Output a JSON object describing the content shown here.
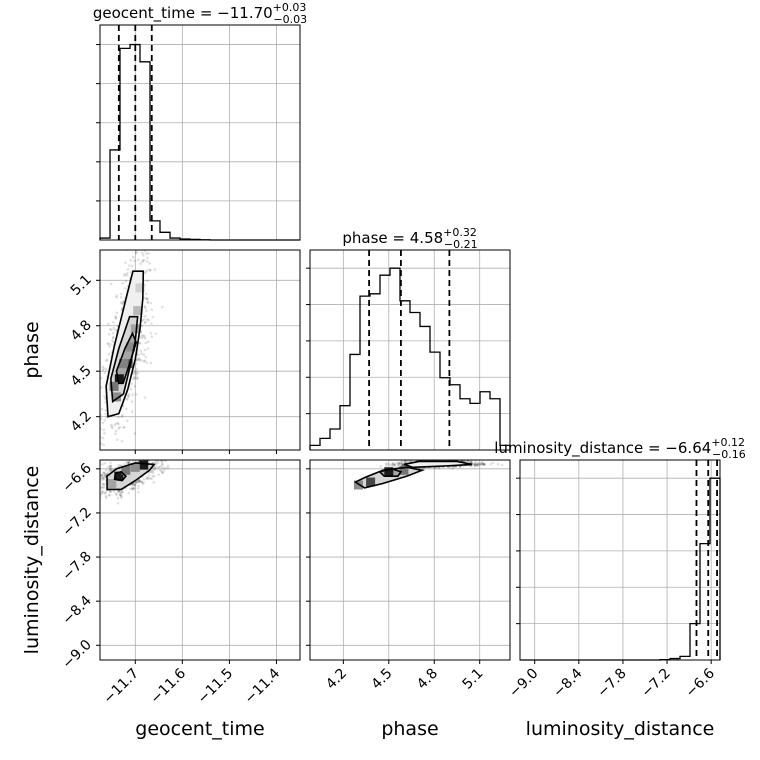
{
  "chart_data": {
    "type": "corner",
    "parameters": [
      {
        "name": "geocent_time",
        "label": "geocent_time",
        "median": "−11.70",
        "plus": "+0.03",
        "minus": "−0.03",
        "quantiles": [
          -11.735,
          -11.7,
          -11.665
        ],
        "range": [
          -11.775,
          -11.35
        ],
        "ticks": [
          -11.7,
          -11.6,
          -11.5,
          -11.4
        ],
        "tick_labels": [
          "−11.7",
          "−11.6",
          "−11.5",
          "−11.4"
        ],
        "hist_edges": [
          -11.775,
          -11.7537,
          -11.7325,
          -11.7112,
          -11.69,
          -11.6687,
          -11.6475,
          -11.6262,
          -11.605,
          -11.5837,
          -11.5625,
          -11.5412,
          -11.52,
          -11.4988,
          -11.4775,
          -11.4562,
          -11.435,
          -11.4138,
          -11.3925,
          -11.3712,
          -11.35
        ],
        "hist_counts": [
          0.01,
          0.47,
          1.0,
          1.02,
          0.93,
          0.1,
          0.04,
          0.01,
          0.005,
          0.003,
          0.001,
          0.0,
          0.0,
          0.0,
          0.0,
          0.0,
          0.0,
          0.0,
          0.0,
          0.0
        ]
      },
      {
        "name": "phase",
        "label": "phase",
        "median": "4.58",
        "plus": "+0.32",
        "minus": "−0.21",
        "quantiles": [
          4.37,
          4.58,
          4.9
        ],
        "range": [
          3.98,
          5.3
        ],
        "ticks": [
          4.2,
          4.5,
          4.8,
          5.1
        ],
        "tick_labels": [
          "4.2",
          "4.5",
          "4.8",
          "5.1"
        ],
        "hist_edges": [
          3.98,
          4.046,
          4.112,
          4.178,
          4.244,
          4.31,
          4.376,
          4.442,
          4.508,
          4.574,
          4.64,
          4.706,
          4.772,
          4.838,
          4.904,
          4.97,
          5.036,
          5.102,
          5.168,
          5.234,
          5.3
        ],
        "hist_counts": [
          0.02,
          0.05,
          0.09,
          0.19,
          0.41,
          0.66,
          0.67,
          0.75,
          0.78,
          0.64,
          0.59,
          0.53,
          0.42,
          0.31,
          0.28,
          0.22,
          0.2,
          0.25,
          0.22,
          0.02
        ]
      },
      {
        "name": "luminosity_distance",
        "label": "luminosity_distance",
        "median": "−6.64",
        "plus": "+0.12",
        "minus": "−0.16",
        "quantiles": [
          -6.8,
          -6.64,
          -6.52
        ],
        "range": [
          -9.2,
          -6.48
        ],
        "ticks": [
          -9.0,
          -8.4,
          -7.8,
          -7.2,
          -6.6
        ],
        "tick_labels": [
          "−9.0",
          "−8.4",
          "−7.8",
          "−7.2",
          "−6.6"
        ],
        "hist_edges": [
          -9.2,
          -9.064,
          -8.928,
          -8.792,
          -8.656,
          -8.52,
          -8.384,
          -8.248,
          -8.112,
          -7.976,
          -7.84,
          -7.704,
          -7.568,
          -7.432,
          -7.296,
          -7.16,
          -7.024,
          -6.888,
          -6.752,
          -6.616,
          -6.48
        ],
        "hist_counts": [
          0,
          0,
          0,
          0,
          0,
          0,
          0,
          0,
          0,
          0,
          0,
          0,
          0,
          0,
          0.001,
          0.004,
          0.01,
          0.1,
          0.32,
          0.5
        ]
      }
    ],
    "densities": [
      {
        "x": "geocent_time",
        "y": "phase",
        "peak": [
          -11.73,
          4.45
        ],
        "cells": [
          [
            -11.734,
            4.45,
            1.0
          ],
          [
            -11.715,
            4.55,
            0.7
          ],
          [
            -11.71,
            4.66,
            0.5
          ],
          [
            -11.74,
            4.33,
            0.5
          ],
          [
            -11.7,
            4.78,
            0.4
          ],
          [
            -11.725,
            4.55,
            0.55
          ],
          [
            -11.745,
            4.4,
            0.6
          ],
          [
            -11.695,
            4.9,
            0.3
          ],
          [
            -11.69,
            5.05,
            0.2
          ]
        ],
        "contours": [
          [
            [
              -11.735,
              4.42
            ],
            [
              -11.74,
              4.5
            ],
            [
              -11.722,
              4.65
            ],
            [
              -11.706,
              4.75
            ],
            [
              -11.698,
              4.69
            ],
            [
              -11.712,
              4.55
            ],
            [
              -11.726,
              4.42
            ]
          ],
          [
            [
              -11.748,
              4.3
            ],
            [
              -11.752,
              4.45
            ],
            [
              -11.735,
              4.65
            ],
            [
              -11.712,
              4.86
            ],
            [
              -11.695,
              4.86
            ],
            [
              -11.7,
              4.7
            ],
            [
              -11.712,
              4.52
            ],
            [
              -11.725,
              4.35
            ]
          ],
          [
            [
              -11.758,
              4.2
            ],
            [
              -11.762,
              4.4
            ],
            [
              -11.745,
              4.66
            ],
            [
              -11.718,
              5.0
            ],
            [
              -11.705,
              5.16
            ],
            [
              -11.683,
              5.16
            ],
            [
              -11.684,
              4.98
            ],
            [
              -11.69,
              4.78
            ],
            [
              -11.7,
              4.58
            ],
            [
              -11.716,
              4.38
            ],
            [
              -11.735,
              4.22
            ]
          ]
        ]
      },
      {
        "x": "geocent_time",
        "y": "luminosity_distance",
        "peak": [
          -11.68,
          -6.55
        ],
        "cells": [
          [
            -11.735,
            -6.7,
            1.0
          ],
          [
            -11.682,
            -6.55,
            1.0
          ],
          [
            -11.72,
            -6.62,
            0.6
          ],
          [
            -11.7,
            -6.58,
            0.5
          ],
          [
            -11.75,
            -6.8,
            0.4
          ]
        ],
        "contours": [
          [
            [
              -11.742,
              -6.66
            ],
            [
              -11.744,
              -6.74
            ],
            [
              -11.728,
              -6.76
            ],
            [
              -11.72,
              -6.7
            ],
            [
              -11.73,
              -6.64
            ]
          ],
          [
            [
              -11.76,
              -6.7
            ],
            [
              -11.76,
              -6.88
            ],
            [
              -11.73,
              -6.88
            ],
            [
              -11.7,
              -6.76
            ],
            [
              -11.67,
              -6.62
            ],
            [
              -11.66,
              -6.54
            ],
            [
              -11.7,
              -6.52
            ],
            [
              -11.74,
              -6.6
            ]
          ]
        ]
      },
      {
        "x": "phase",
        "y": "luminosity_distance",
        "peak": [
          4.5,
          -6.64
        ],
        "cells": [
          [
            4.5,
            -6.64,
            1.0
          ],
          [
            4.38,
            -6.78,
            0.8
          ],
          [
            4.6,
            -6.62,
            0.6
          ],
          [
            4.3,
            -6.82,
            0.5
          ]
        ],
        "contours": [
          [
            [
              4.44,
              -6.64
            ],
            [
              4.47,
              -6.7
            ],
            [
              4.56,
              -6.7
            ],
            [
              4.58,
              -6.64
            ],
            [
              4.52,
              -6.6
            ]
          ],
          [
            [
              4.28,
              -6.78
            ],
            [
              4.34,
              -6.86
            ],
            [
              4.46,
              -6.8
            ],
            [
              4.62,
              -6.7
            ],
            [
              4.72,
              -6.62
            ],
            [
              4.62,
              -6.58
            ],
            [
              4.46,
              -6.62
            ],
            [
              4.34,
              -6.72
            ]
          ],
          [
            [
              4.6,
              -6.54
            ],
            [
              4.66,
              -6.58
            ],
            [
              4.88,
              -6.56
            ],
            [
              5.05,
              -6.54
            ],
            [
              4.95,
              -6.5
            ],
            [
              4.7,
              -6.5
            ]
          ]
        ]
      }
    ]
  },
  "colors": {
    "line": "#000000",
    "grid": "#b0b0b0",
    "contour_fill_levels": [
      "#a6a6a6",
      "#d6d6d6",
      "#f0f0f0"
    ]
  }
}
